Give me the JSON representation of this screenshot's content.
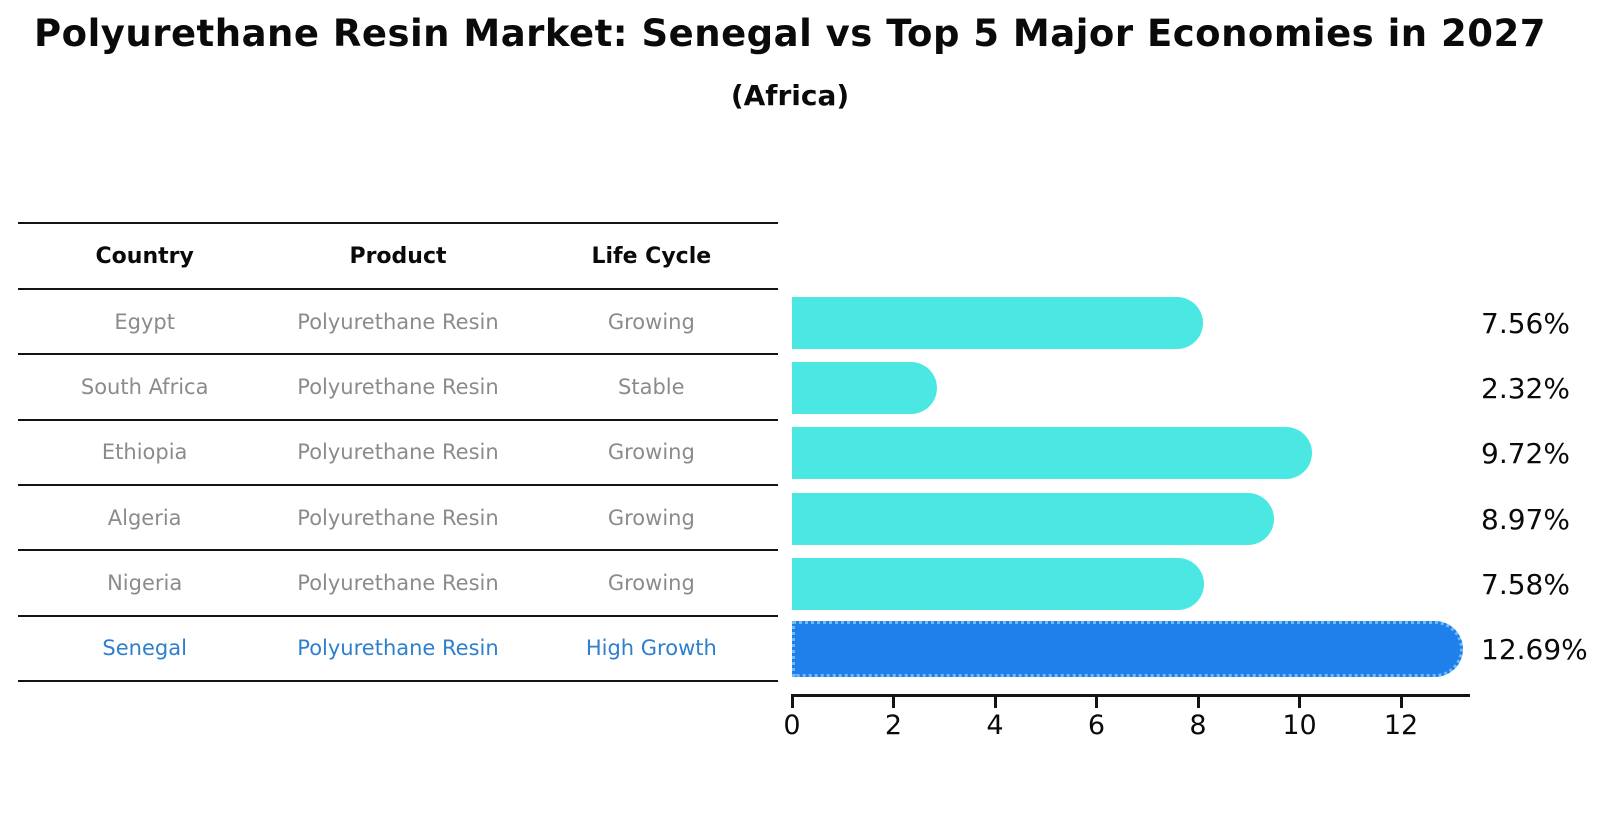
{
  "chart_data": {
    "type": "bar",
    "orientation": "horizontal",
    "title": "Polyurethane Resin Market: Senegal vs Top 5 Major Economies in 2027",
    "subtitle": "(Africa)",
    "categories": [
      "Egypt",
      "South Africa",
      "Ethiopia",
      "Algeria",
      "Nigeria",
      "Senegal"
    ],
    "values": [
      7.56,
      2.32,
      9.72,
      8.97,
      7.58,
      12.69
    ],
    "value_labels": [
      "7.56%",
      "2.32%",
      "9.72%",
      "8.97%",
      "7.58%",
      "12.69%"
    ],
    "xlabel": "",
    "ylabel": "",
    "xlim": [
      0,
      13.35
    ],
    "x_ticks": [
      "0",
      "2",
      "4",
      "6",
      "8",
      "10",
      "12"
    ],
    "grid": false,
    "legend": "none",
    "highlight_index": 5,
    "colors": {
      "bar_default": "#4BE8E3",
      "bar_highlight": "#1F7FEB",
      "highlight_border": "#6FBBF3",
      "axis": "#141414",
      "value_label": "#0a0a0a"
    }
  },
  "table": {
    "headers": [
      "Country",
      "Product",
      "Life Cycle"
    ],
    "rows": [
      {
        "country": "Egypt",
        "product": "Polyurethane Resin",
        "life_cycle": "Growing",
        "highlight": false
      },
      {
        "country": "South Africa",
        "product": "Polyurethane Resin",
        "life_cycle": "Stable",
        "highlight": false
      },
      {
        "country": "Ethiopia",
        "product": "Polyurethane Resin",
        "life_cycle": "Growing",
        "highlight": false
      },
      {
        "country": "Algeria",
        "product": "Polyurethane Resin",
        "life_cycle": "Growing",
        "highlight": false
      },
      {
        "country": "Nigeria",
        "product": "Polyurethane Resin",
        "life_cycle": "Growing",
        "highlight": false
      },
      {
        "country": "Senegal",
        "product": "Polyurethane Resin",
        "life_cycle": "High Growth",
        "highlight": true
      }
    ],
    "colors": {
      "header_text": "#0a0a0a",
      "cell_text": "#8b8b8b",
      "highlight_text": "#2E7FCC"
    }
  }
}
